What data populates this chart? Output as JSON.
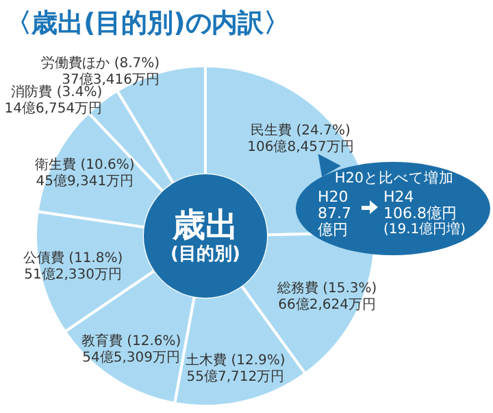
{
  "chart_data": {
    "type": "donut",
    "title": "〈歳出(目的別)の内訳〉",
    "categories": [
      "民生費",
      "総務費",
      "土木費",
      "教育費",
      "公債費",
      "衛生費",
      "消防費",
      "労働費ほか"
    ],
    "values": [
      24.7,
      15.3,
      12.9,
      12.6,
      11.8,
      10.6,
      3.4,
      8.7
    ],
    "colors": [
      "#a9d9f2",
      "#a9d9f2",
      "#a9d9f2",
      "#a9d9f2",
      "#a9d9f2",
      "#a9d9f2",
      "#a9d9f2",
      "#a9d9f2"
    ],
    "value_labels": [
      "(24.7%)",
      "(15.3%)",
      "(12.9%)",
      "(12.6%)",
      "(11.8%)",
      "(10.6%)",
      "(3.4%)",
      "(8.7%)"
    ],
    "legend": false,
    "annotations": [
      {
        "text": "106億8,457万円",
        "x": "民生費"
      },
      {
        "text": "66億2,624万円",
        "x": "総務費"
      },
      {
        "text": "55億7,712万円",
        "x": "土木費"
      },
      {
        "text": "54億5,309万円",
        "x": "教育費"
      },
      {
        "text": "51億2,330万円",
        "x": "公債費"
      },
      {
        "text": "45億9,341万円",
        "x": "衛生費"
      },
      {
        "text": "14億6,754万円",
        "x": "消防費"
      },
      {
        "text": "37億3,416万円",
        "x": "労働費ほか"
      },
      "歳出",
      "(目的別)",
      "H20と比べて増加",
      "H20",
      "87.7",
      "億円",
      "H24",
      "106.8億円",
      "(19.1億円増)"
    ]
  }
}
